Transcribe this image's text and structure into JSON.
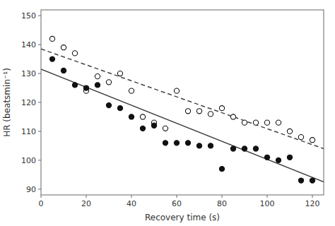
{
  "chart_data": {
    "type": "scatter",
    "title": "",
    "xlabel": "Recovery time (s)",
    "ylabel": "HR (beatsmin⁻¹)",
    "xlim": [
      0,
      125
    ],
    "ylim": [
      88,
      152
    ],
    "xticks": [
      0,
      20,
      40,
      60,
      80,
      100,
      120
    ],
    "yticks": [
      90,
      100,
      110,
      120,
      130,
      140,
      150
    ],
    "grid": false,
    "series": [
      {
        "type": "scatter",
        "marker": "open",
        "color": "#111111",
        "x": [
          5,
          10,
          15,
          20,
          25,
          30,
          35,
          40,
          45,
          50,
          55,
          60,
          65,
          70,
          75,
          80,
          85,
          90,
          95,
          100,
          105,
          110,
          115,
          120
        ],
        "values": [
          142,
          139,
          137,
          124,
          129,
          127,
          130,
          124,
          115,
          113,
          111,
          124,
          117,
          117,
          116,
          118,
          115,
          113,
          113,
          113,
          113,
          110,
          108,
          107
        ]
      },
      {
        "type": "scatter",
        "marker": "filled",
        "color": "#111111",
        "x": [
          5,
          10,
          15,
          20,
          25,
          30,
          35,
          40,
          45,
          50,
          55,
          60,
          65,
          70,
          75,
          80,
          85,
          90,
          95,
          100,
          105,
          110,
          115,
          120
        ],
        "values": [
          135,
          131,
          126,
          125,
          126,
          119,
          118,
          115,
          111,
          112,
          106,
          106,
          106,
          105,
          105,
          97,
          104,
          104,
          104,
          101,
          100,
          101,
          93,
          93
        ]
      },
      {
        "type": "line",
        "line_style": "dashed",
        "color": "#444444",
        "x": [
          0,
          125
        ],
        "values": [
          138.5,
          104.0
        ]
      },
      {
        "type": "line",
        "line_style": "solid",
        "color": "#444444",
        "x": [
          0,
          125
        ],
        "values": [
          131.5,
          92.5
        ]
      }
    ]
  }
}
